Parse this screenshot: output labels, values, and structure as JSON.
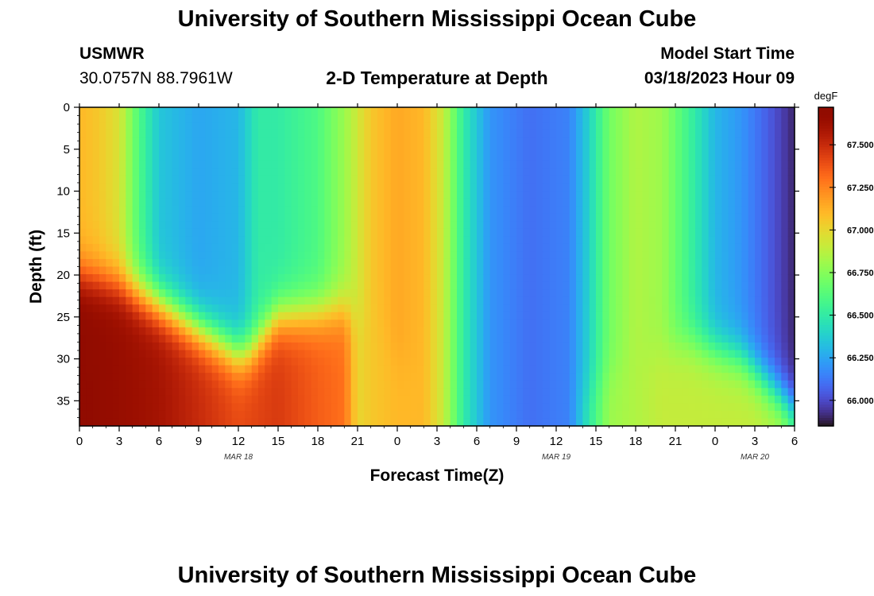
{
  "page": {
    "title_top": "University of Southern Mississippi Ocean Cube",
    "title_bottom": "University of Southern Mississippi Ocean Cube",
    "station": "USMWR",
    "coords": "30.0757N  88.7961W",
    "subtitle": "2-D Temperature at Depth",
    "model_label": "Model Start Time",
    "model_time": "03/18/2023 Hour 09"
  },
  "chart_data": {
    "type": "heatmap",
    "title": "2-D Temperature at Depth",
    "xlabel": "Forecast Time(Z)",
    "ylabel": "Depth (ft)",
    "x_ticks": [
      "0",
      "3",
      "6",
      "9",
      "12",
      "15",
      "18",
      "21",
      "0",
      "3",
      "6",
      "9",
      "12",
      "15",
      "18",
      "21",
      "0",
      "3",
      "6"
    ],
    "x_range_hours": [
      0,
      54
    ],
    "y_ticks": [
      "0",
      "5",
      "10",
      "15",
      "20",
      "25",
      "30",
      "35"
    ],
    "y_range_ft": [
      0,
      38
    ],
    "y_inverted": true,
    "date_labels": [
      {
        "text": "MAR 18",
        "hour": 12
      },
      {
        "text": "MAR 19",
        "hour": 36
      },
      {
        "text": "MAR 20",
        "hour": 51
      }
    ],
    "colorbar": {
      "unit": "degF",
      "min": 65.85,
      "max": 67.72,
      "ticks": [
        "67.500",
        "67.250",
        "67.000",
        "66.750",
        "66.500",
        "66.250",
        "66.000"
      ],
      "tick_values": [
        67.5,
        67.25,
        67.0,
        66.75,
        66.5,
        66.25,
        66.0
      ],
      "colormap": "turbo"
    },
    "surface_temperature_by_hour": [
      {
        "hour": 0,
        "degF": 67.1
      },
      {
        "hour": 1.5,
        "degF": 67.05
      },
      {
        "hour": 3,
        "degF": 66.95
      },
      {
        "hour": 4.5,
        "degF": 66.6
      },
      {
        "hour": 6,
        "degF": 66.35
      },
      {
        "hour": 9,
        "degF": 66.25
      },
      {
        "hour": 12,
        "degF": 66.3
      },
      {
        "hour": 13.5,
        "degF": 66.5
      },
      {
        "hour": 15,
        "degF": 66.5
      },
      {
        "hour": 18,
        "degF": 66.6
      },
      {
        "hour": 20,
        "degF": 66.8
      },
      {
        "hour": 22,
        "degF": 67.05
      },
      {
        "hour": 24,
        "degF": 67.15
      },
      {
        "hour": 26,
        "degF": 67.1
      },
      {
        "hour": 27.5,
        "degF": 66.9
      },
      {
        "hour": 29,
        "degF": 66.5
      },
      {
        "hour": 31,
        "degF": 66.2
      },
      {
        "hour": 34,
        "degF": 66.1
      },
      {
        "hour": 37,
        "degF": 66.15
      },
      {
        "hour": 38.5,
        "degF": 66.4
      },
      {
        "hour": 40,
        "degF": 66.7
      },
      {
        "hour": 42,
        "degF": 66.85
      },
      {
        "hour": 44,
        "degF": 66.8
      },
      {
        "hour": 46,
        "degF": 66.55
      },
      {
        "hour": 48,
        "degF": 66.3
      },
      {
        "hour": 50,
        "degF": 66.2
      },
      {
        "hour": 52,
        "degF": 66.05
      },
      {
        "hour": 54,
        "degF": 65.9
      }
    ],
    "bottom_temperature_by_hour": [
      {
        "hour": 0,
        "degF": 67.7
      },
      {
        "hour": 6,
        "degF": 67.6
      },
      {
        "hour": 12,
        "degF": 67.4
      },
      {
        "hour": 15,
        "degF": 67.45
      },
      {
        "hour": 18,
        "degF": 67.35
      },
      {
        "hour": 20,
        "degF": 67.3
      },
      {
        "hour": 21,
        "degF": 67.0
      },
      {
        "hour": 22,
        "degF": 67.05
      },
      {
        "hour": 24,
        "degF": 67.1
      },
      {
        "hour": 26,
        "degF": 67.1
      },
      {
        "hour": 27.5,
        "degF": 66.9
      },
      {
        "hour": 29,
        "degF": 66.5
      },
      {
        "hour": 31,
        "degF": 66.2
      },
      {
        "hour": 34,
        "degF": 66.1
      },
      {
        "hour": 37,
        "degF": 66.15
      },
      {
        "hour": 38.5,
        "degF": 66.5
      },
      {
        "hour": 40,
        "degF": 66.8
      },
      {
        "hour": 44,
        "degF": 66.9
      },
      {
        "hour": 48,
        "degF": 66.9
      },
      {
        "hour": 51,
        "degF": 66.9
      },
      {
        "hour": 53,
        "degF": 66.85
      },
      {
        "hour": 54,
        "degF": 66.7
      }
    ]
  }
}
